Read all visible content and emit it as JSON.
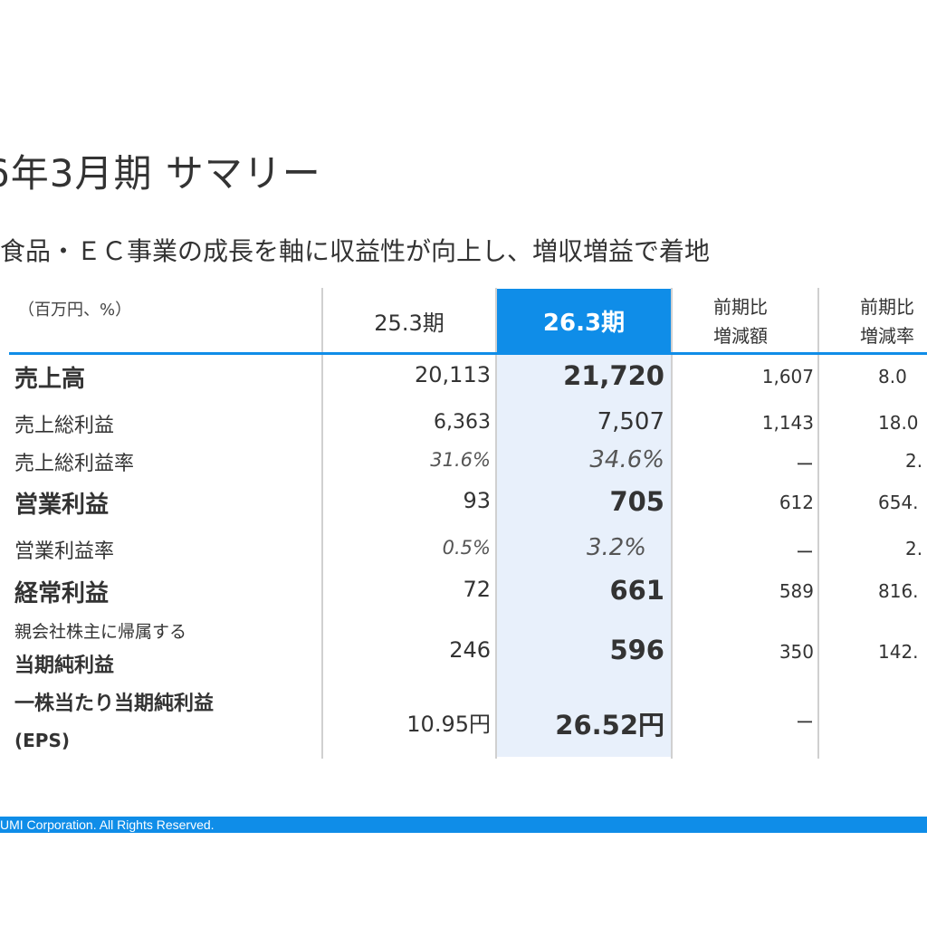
{
  "title": "6年3月期 サマリー",
  "subtitle": "食品・ＥＣ事業の成長を軸に収益性が向上し、増収増益で着地",
  "table": {
    "unit": "（百万円、%）",
    "col_prev": "25.3期",
    "col_cur": "26.3期",
    "col_diff_1": "前期比",
    "col_diff_2": "増減額",
    "col_rate_1": "前期比",
    "col_rate_2": "増減率",
    "rows": [
      {
        "label": "売上高",
        "prev": "20,113",
        "cur": "21,720",
        "diff": "1,607",
        "rate": "8.0"
      },
      {
        "label": "売上総利益",
        "prev": "6,363",
        "cur": "7,507",
        "diff": "1,143",
        "rate": "18.0"
      },
      {
        "label": "売上総利益率",
        "prev": "31.6%",
        "cur": "34.6%",
        "diff": "ー",
        "rate": "2."
      },
      {
        "label": "営業利益",
        "prev": "93",
        "cur": "705",
        "diff": "612",
        "rate": "654."
      },
      {
        "label": "営業利益率",
        "prev": "0.5%",
        "cur": "3.2%",
        "diff": "ー",
        "rate": "2."
      },
      {
        "label": "経常利益",
        "prev": "72",
        "cur": "661",
        "diff": "589",
        "rate": "816."
      },
      {
        "label_line1": "親会社株主に帰属する",
        "label_line2": "当期純利益",
        "prev": "246",
        "cur": "596",
        "diff": "350",
        "rate": "142."
      },
      {
        "label_line1": "一株当たり当期純利益",
        "label_line2": "(EPS)",
        "prev": "10.95円",
        "cur": "26.52円",
        "diff": "ー"
      }
    ]
  },
  "footer": "UMI Corporation. All Rights Reserved.",
  "colors": {
    "accent": "#0f8de8",
    "highlight": "#e8f0fb"
  }
}
